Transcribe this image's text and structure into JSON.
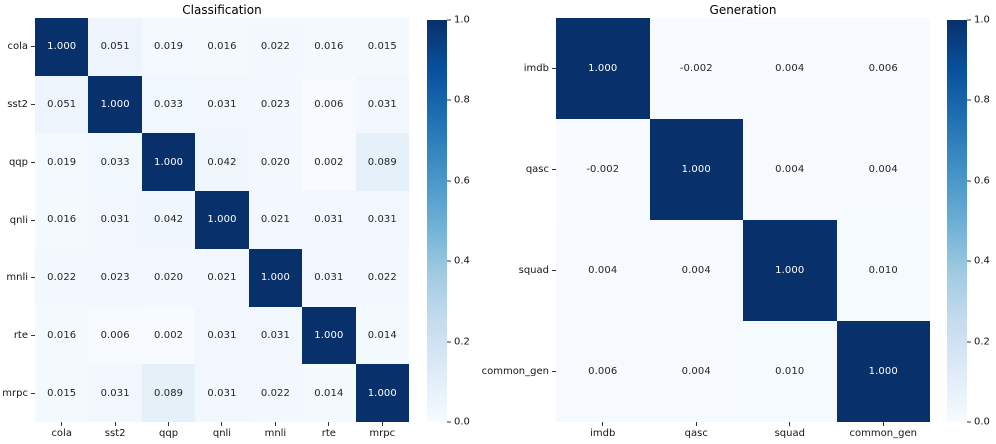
{
  "figure": {
    "background": "#ffffff",
    "colormap": {
      "name": "Blues",
      "anchors": [
        "#f7fbff",
        "#deebf7",
        "#c6dbef",
        "#9ecae1",
        "#6baed6",
        "#4292c6",
        "#2171b5",
        "#08519c",
        "#08306b"
      ],
      "max_color": "#08306b",
      "min_color": "#f7fbff"
    },
    "annotation_dark_text": "#262626",
    "annotation_light_text": "#ffffff",
    "tick_label_color": "#151515"
  },
  "chart_data": [
    {
      "type": "heatmap",
      "title": "Classification",
      "categories": [
        "cola",
        "sst2",
        "qqp",
        "qnli",
        "mnli",
        "rte",
        "mrpc"
      ],
      "matrix": [
        [
          1.0,
          0.051,
          0.019,
          0.016,
          0.022,
          0.016,
          0.015
        ],
        [
          0.051,
          1.0,
          0.033,
          0.031,
          0.023,
          0.006,
          0.031
        ],
        [
          0.019,
          0.033,
          1.0,
          0.042,
          0.02,
          0.002,
          0.089
        ],
        [
          0.016,
          0.031,
          0.042,
          1.0,
          0.021,
          0.031,
          0.031
        ],
        [
          0.022,
          0.023,
          0.02,
          0.021,
          1.0,
          0.031,
          0.022
        ],
        [
          0.016,
          0.006,
          0.002,
          0.031,
          0.031,
          1.0,
          0.014
        ],
        [
          0.015,
          0.031,
          0.089,
          0.031,
          0.022,
          0.014,
          1.0
        ]
      ],
      "vmin": 0.0,
      "vmax": 1.0,
      "value_decimals": 3,
      "colorbar_ticks": [
        "1.0",
        "0.8",
        "0.6",
        "0.4",
        "0.2",
        "0.0"
      ],
      "colorbar_position": "right",
      "grid": false
    },
    {
      "type": "heatmap",
      "title": "Generation",
      "categories": [
        "imdb",
        "qasc",
        "squad",
        "common_gen"
      ],
      "matrix": [
        [
          1.0,
          -0.002,
          0.004,
          0.006
        ],
        [
          -0.002,
          1.0,
          0.004,
          0.004
        ],
        [
          0.004,
          0.004,
          1.0,
          0.01
        ],
        [
          0.006,
          0.004,
          0.01,
          1.0
        ]
      ],
      "vmin": 0.0,
      "vmax": 1.0,
      "value_decimals": 3,
      "colorbar_ticks": [
        "1.0",
        "0.8",
        "0.6",
        "0.4",
        "0.2",
        "0.0"
      ],
      "colorbar_position": "right",
      "grid": false
    }
  ]
}
